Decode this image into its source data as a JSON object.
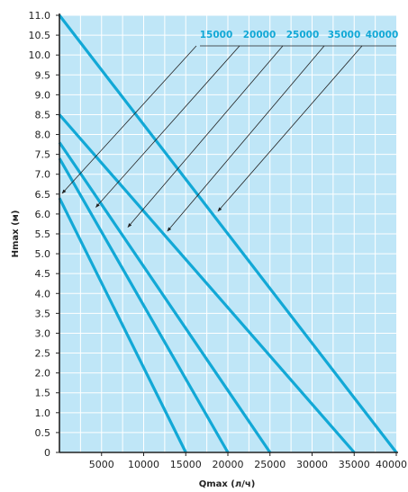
{
  "chart_data": {
    "type": "line",
    "title": "",
    "xlabel": "Qmax (л/ч)",
    "ylabel": "Hmax (м)",
    "xlim": [
      0,
      40000
    ],
    "ylim": [
      0,
      11
    ],
    "x_ticks": [
      5000,
      10000,
      15000,
      20000,
      25000,
      30000,
      35000,
      40000
    ],
    "x_tick_labels": [
      "5000",
      "10000",
      "15000",
      "20000",
      "25000",
      "30000",
      "35000",
      "40000"
    ],
    "y_ticks": [
      0,
      0.5,
      1,
      1.5,
      2,
      2.5,
      3,
      3.5,
      4,
      4.5,
      5,
      5.5,
      6,
      6.5,
      7,
      7.5,
      8,
      8.5,
      9,
      9.5,
      10,
      10.5,
      11
    ],
    "y_tick_labels": [
      "0",
      "0.5",
      "1.0",
      "1.5",
      "2.0",
      "2.5",
      "3.0",
      "3.5",
      "4.0",
      "4.5",
      "5.0",
      "5.5",
      "6.0",
      "6.5",
      "7.0",
      "7.5",
      "8.0",
      "8.5",
      "9.0",
      "9.5",
      "10.0",
      "10.5",
      "11.0"
    ],
    "grid": true,
    "legend_placement": "top-right",
    "colors": {
      "background": "#bfe6f7",
      "grid": "#ffffff",
      "series": "#12a8d6",
      "axis": "#222222"
    },
    "series": [
      {
        "name": "15000",
        "x": [
          0,
          15000
        ],
        "y": [
          6.4,
          0
        ],
        "pointer_at": [
          0.5,
          6.45
        ]
      },
      {
        "name": "20000",
        "x": [
          0,
          20000
        ],
        "y": [
          7.4,
          0
        ],
        "pointer_at": [
          4000,
          6.1
        ]
      },
      {
        "name": "25000",
        "x": [
          0,
          25000
        ],
        "y": [
          7.8,
          0
        ],
        "pointer_at": [
          7800,
          5.6
        ]
      },
      {
        "name": "35000",
        "x": [
          0,
          35000
        ],
        "y": [
          8.5,
          0
        ],
        "pointer_at": [
          12500,
          5.5
        ]
      },
      {
        "name": "40000",
        "x": [
          0,
          40000
        ],
        "y": [
          11.0,
          0
        ],
        "pointer_at": [
          18500,
          6.0
        ]
      }
    ]
  }
}
